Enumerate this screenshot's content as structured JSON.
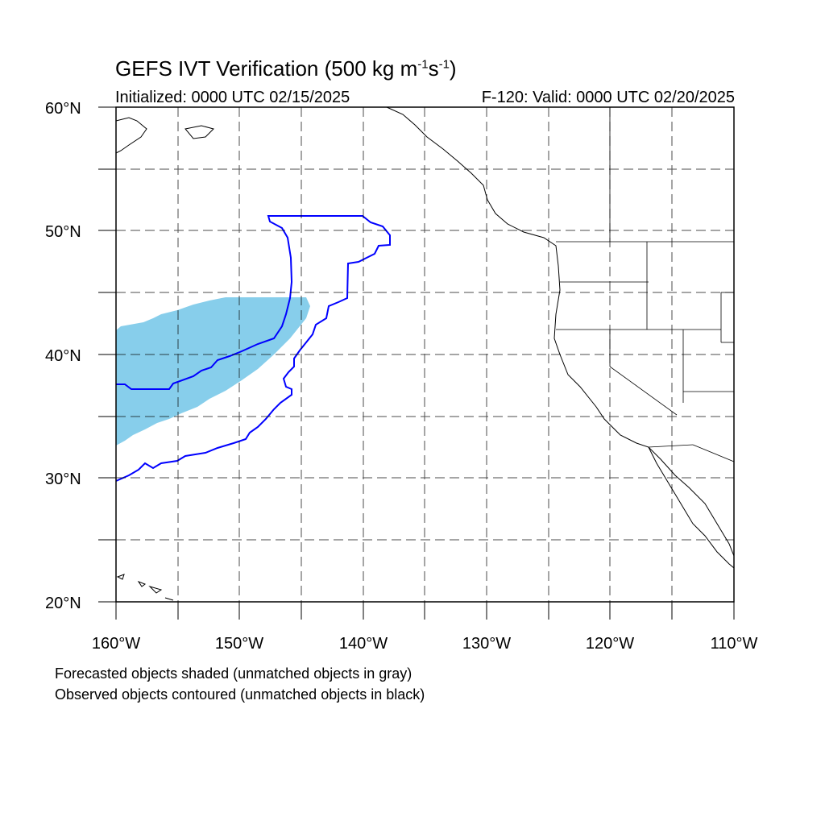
{
  "header": {
    "title_main": "GEFS IVT Verification (500 kg m",
    "title_sup1": "-1",
    "title_mid": "s",
    "title_sup2": "-1",
    "title_end": ")",
    "initialized": "Initialized: 0000 UTC 02/15/2025",
    "valid": "F-120: Valid: 0000 UTC 02/20/2025"
  },
  "map": {
    "lon_range": [
      -160,
      -110
    ],
    "lat_range": [
      20,
      60
    ],
    "lon_labels": [
      "160°W",
      "150°W",
      "140°W",
      "130°W",
      "120°W",
      "110°W"
    ],
    "lat_labels": [
      "20°N",
      "30°N",
      "40°N",
      "50°N",
      "60°N"
    ],
    "grid": "dashed every 5°",
    "colors": {
      "forecast_fill": "#87ceeb",
      "observed_contour": "#0000ff",
      "coastline": "#000000"
    }
  },
  "legend": {
    "line1": "Forecasted objects shaded (unmatched objects in gray)",
    "line2": "Observed objects contoured (unmatched objects in black)"
  }
}
